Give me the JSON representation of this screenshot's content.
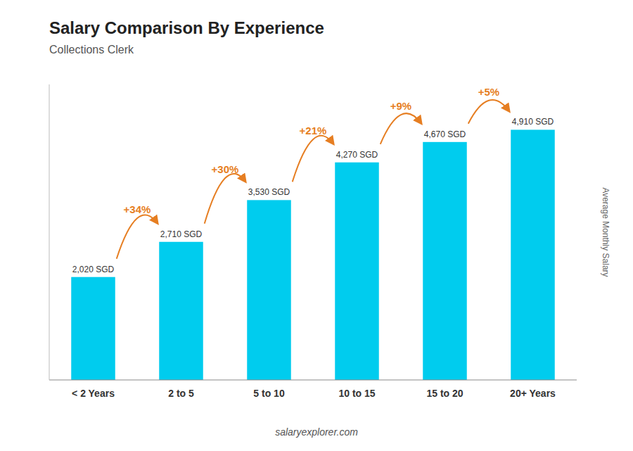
{
  "chart_data": {
    "type": "bar",
    "title": "Salary Comparison By Experience",
    "subtitle": "Collections Clerk",
    "ylabel": "Average Monthly Salary",
    "footer": "salaryexplorer.com",
    "categories": [
      "< 2 Years",
      "2 to 5",
      "5 to 10",
      "10 to 15",
      "15 to 20",
      "20+ Years"
    ],
    "values": [
      2020,
      2710,
      3530,
      4270,
      4670,
      4910
    ],
    "value_labels": [
      "2,020 SGD",
      "2,710 SGD",
      "3,530 SGD",
      "4,270 SGD",
      "4,670 SGD",
      "4,910 SGD"
    ],
    "data_labels": true,
    "annotations": [
      "+34%",
      "+30%",
      "+21%",
      "+9%",
      "+5%"
    ],
    "color": "#00ccee",
    "ylim": [
      0,
      5800
    ],
    "grid": false,
    "tick_labels": "x"
  }
}
